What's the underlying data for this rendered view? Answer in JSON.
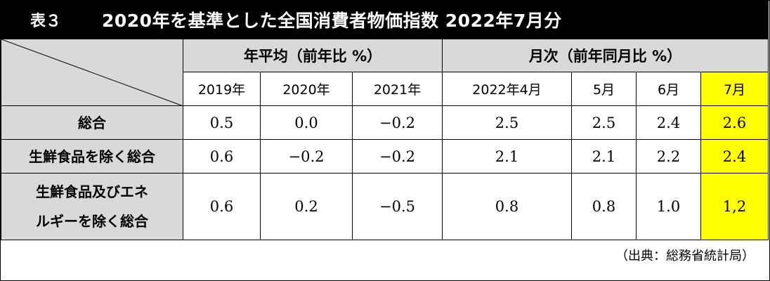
{
  "title": {
    "label": "表３",
    "text": "2020年を基準とした全国消費者物価指数 2022年7月分"
  },
  "table": {
    "group_headers": {
      "annual": "年平均（前年比 %）",
      "monthly": "月次（前年同月比 %）"
    },
    "columns": [
      "2019年",
      "2020年",
      "2021年",
      "2022年4月",
      "5月",
      "6月",
      "7月"
    ],
    "rows": [
      {
        "label": "総合",
        "values": [
          "0.5",
          "0.0",
          "−0.2",
          "2.5",
          "2.5",
          "2.4",
          "2.6"
        ]
      },
      {
        "label": "生鮮食品を除く総合",
        "values": [
          "0.6",
          "−0.2",
          "−0.2",
          "2.1",
          "2.1",
          "2.2",
          "2.4"
        ]
      },
      {
        "label": "生鮮食品及びエネルギーを除く総合",
        "label_line1": "生鮮食品及びエネ",
        "label_line2": "ルギーを除く総合",
        "values": [
          "0.6",
          "0.2",
          "−0.5",
          "0.8",
          "0.8",
          "1.0",
          "1,2"
        ]
      }
    ],
    "highlight_color": "#ffff00",
    "header_bg": "#d9d9d9"
  },
  "source": "（出典：総務省統計局）"
}
